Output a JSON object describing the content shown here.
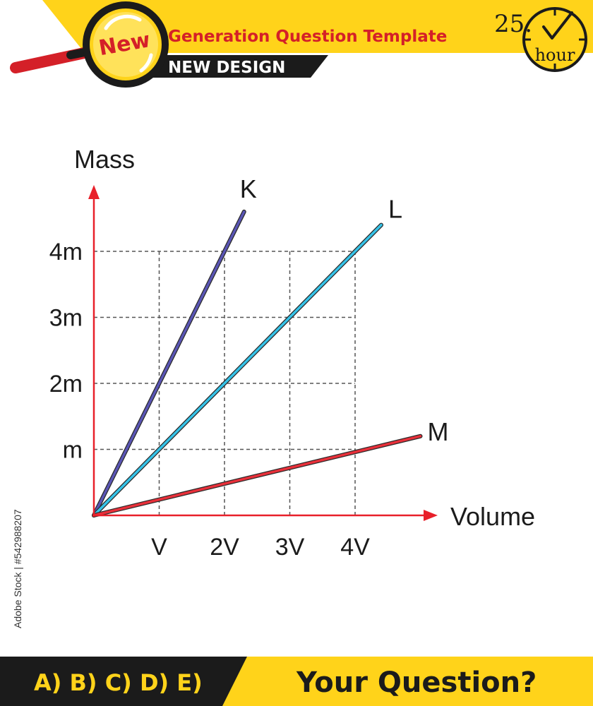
{
  "header": {
    "badge": "New",
    "title": "Generation Question Template",
    "subtitle": "NEW DESIGN",
    "timer_number": "25.",
    "timer_unit": "hour"
  },
  "side_text": "Adobe Stock | #542988207",
  "footer": {
    "options": "A) B) C) D) E)",
    "question": "Your Question?"
  },
  "colors": {
    "accent_yellow": "#ffd31a",
    "dark": "#1b1b1b",
    "badge_red": "#d42028",
    "axis_red": "#e8202a",
    "line_K": "#5a55b5",
    "line_L": "#36c3e8",
    "line_M": "#e8303a"
  },
  "chart_data": {
    "type": "line",
    "xlabel": "Volume",
    "ylabel": "Mass",
    "x_ticks": [
      "V",
      "2V",
      "3V",
      "4V"
    ],
    "y_ticks": [
      "m",
      "2m",
      "3m",
      "4m"
    ],
    "x_unit_values": [
      1,
      2,
      3,
      4
    ],
    "y_unit_values": [
      1,
      2,
      3,
      4
    ],
    "grid": true,
    "series": [
      {
        "name": "K",
        "color": "#5a55b5",
        "points": [
          [
            0,
            0
          ],
          [
            2.3,
            4.6
          ]
        ]
      },
      {
        "name": "L",
        "color": "#36c3e8",
        "points": [
          [
            0,
            0
          ],
          [
            4.4,
            4.4
          ]
        ]
      },
      {
        "name": "M",
        "color": "#e8303a",
        "points": [
          [
            0,
            0
          ],
          [
            5.0,
            1.2
          ]
        ]
      }
    ]
  }
}
